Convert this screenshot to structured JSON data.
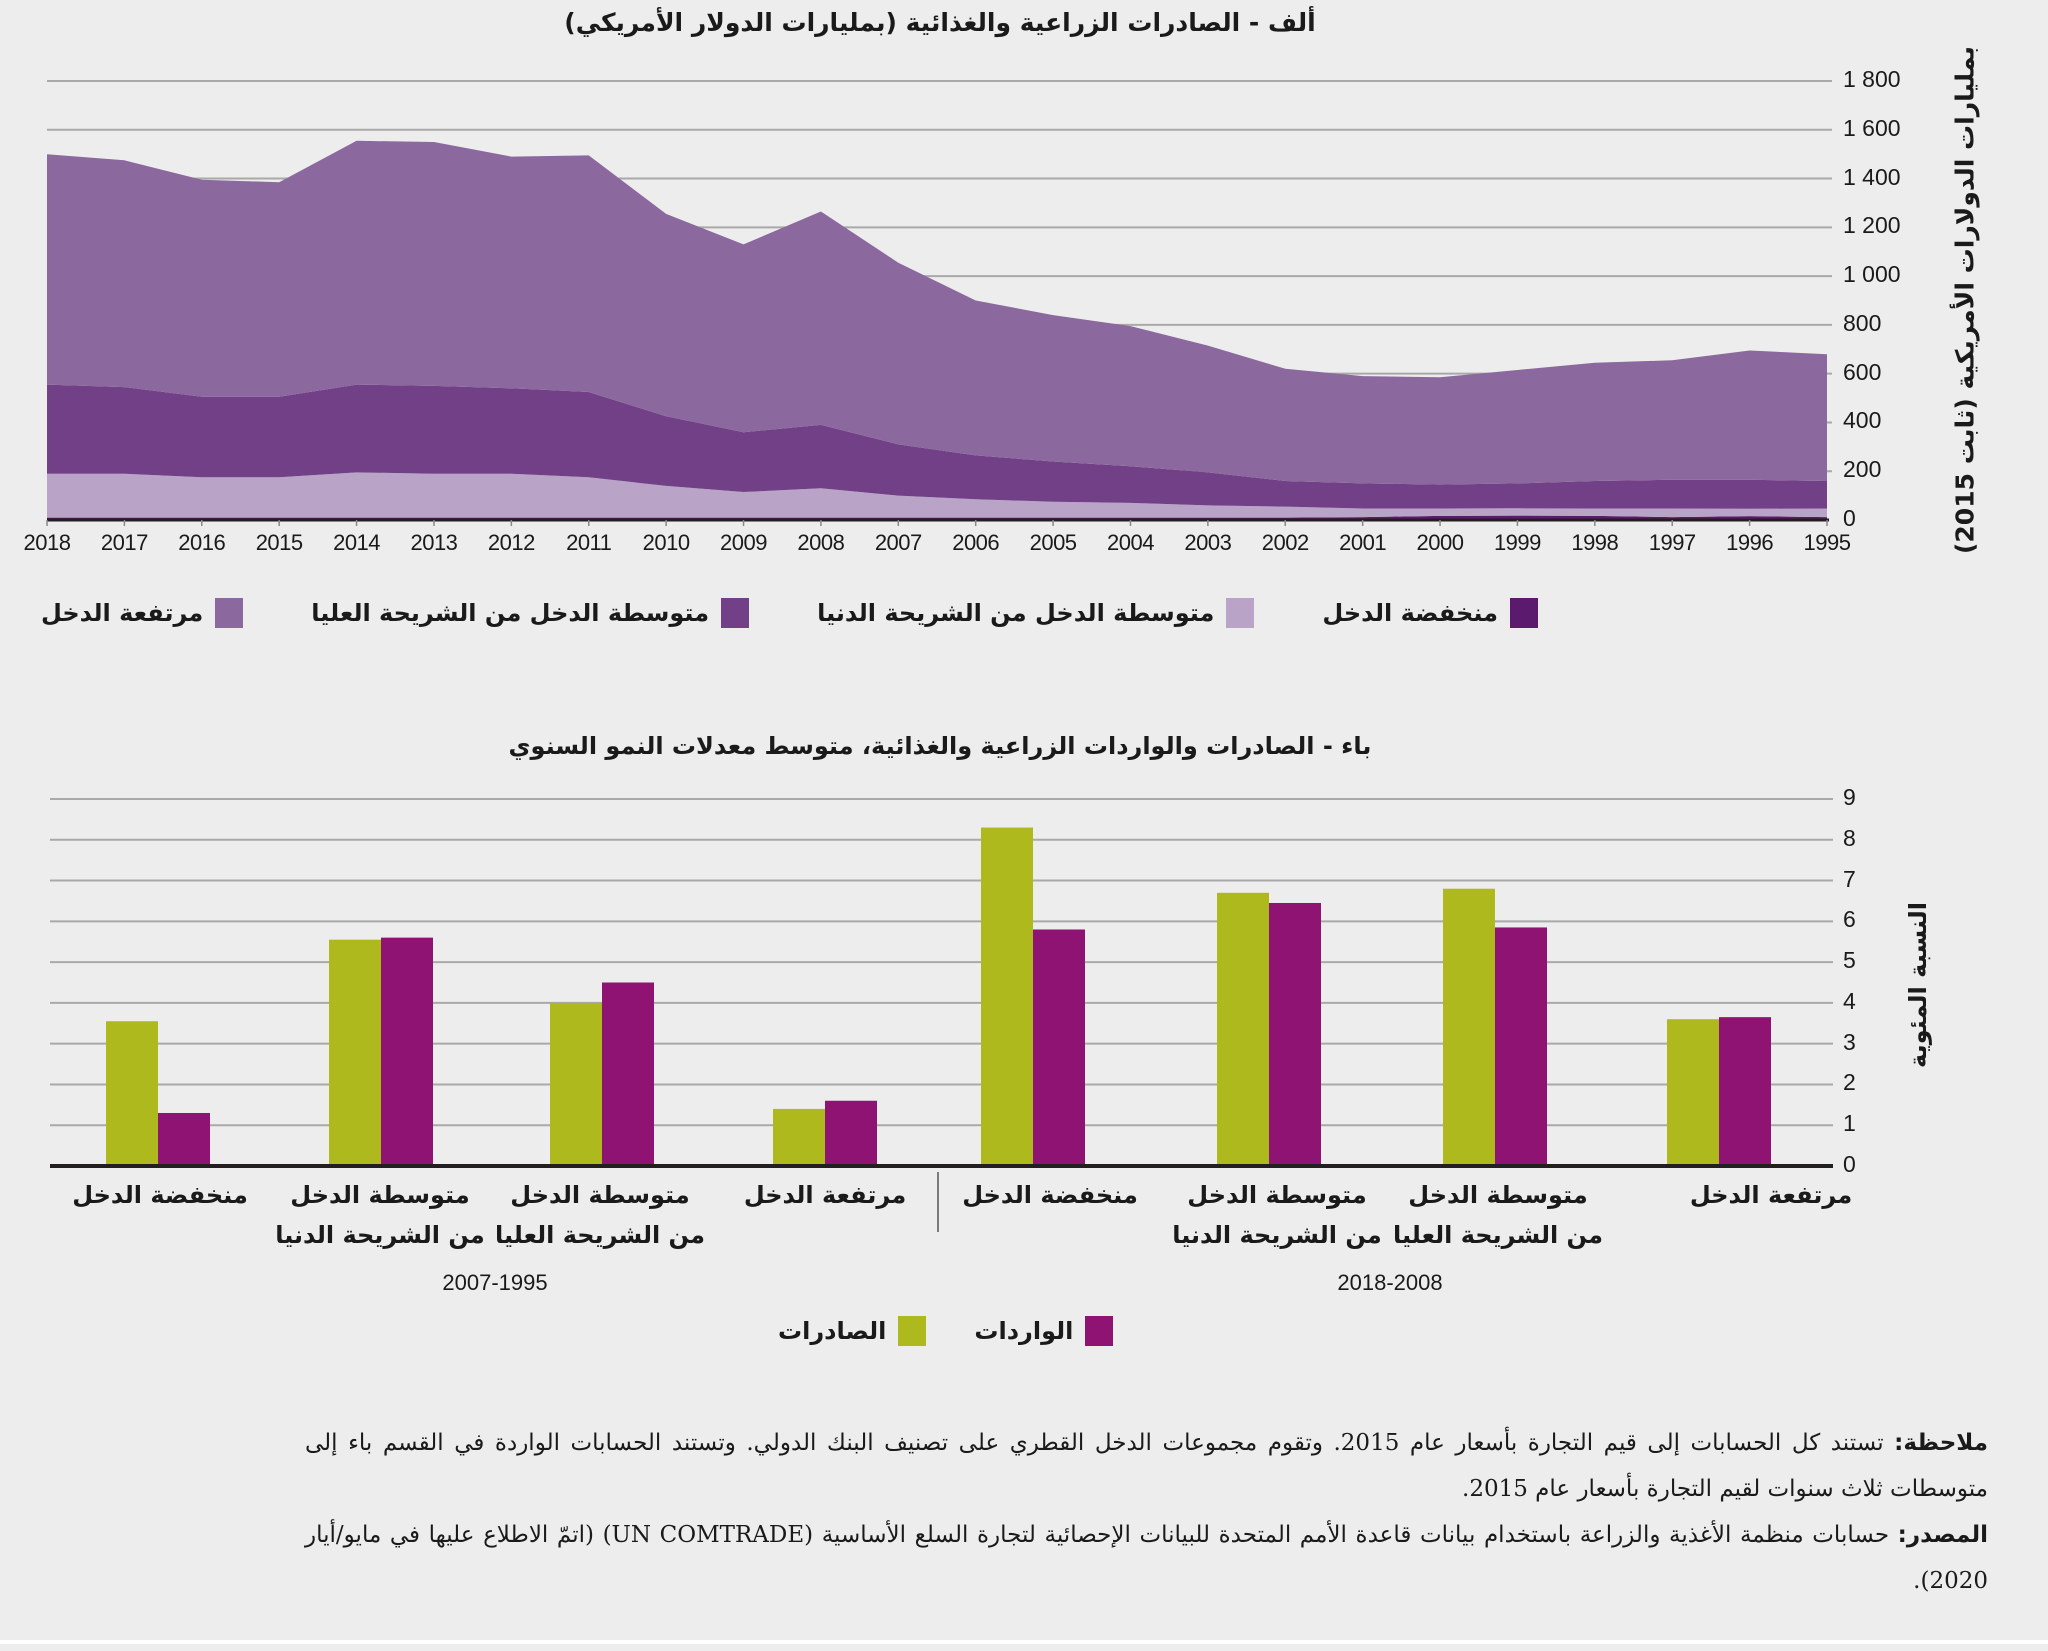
{
  "chart_data": [
    {
      "type": "area",
      "stacked": true,
      "title": "ألف - الصادرات الزراعية والغذائية (بمليارات الدولار الأمريكي)",
      "xlabel": "",
      "ylabel": "بمليارات الدولارات الأمريكية (ثابت 2015)",
      "ylim": [
        0,
        1800
      ],
      "yticks": [
        "0",
        "200",
        "400",
        "600",
        "800",
        "1 000",
        "1 200",
        "1 400",
        "1 600",
        "1 800"
      ],
      "ytick_values": [
        0,
        200,
        400,
        600,
        800,
        1000,
        1200,
        1400,
        1600,
        1800
      ],
      "x_direction": "right-to-left",
      "grid": true,
      "legend_position": "bottom",
      "x": [
        2018,
        2017,
        2016,
        2015,
        2014,
        2013,
        2012,
        2011,
        2010,
        2009,
        2008,
        2007,
        2006,
        2005,
        2004,
        2003,
        2002,
        2001,
        2000,
        1999,
        1998,
        1997,
        1996,
        1995
      ],
      "series": [
        {
          "name": "منخفضة الدخل",
          "color": "#5c1a6e",
          "values": [
            10,
            10,
            10,
            10,
            10,
            10,
            10,
            10,
            10,
            10,
            10,
            10,
            10,
            10,
            10,
            10,
            10,
            12,
            17,
            18,
            17,
            12,
            16,
            12
          ]
        },
        {
          "name": "متوسطة الدخل من الشريحة الدنيا",
          "color": "#b9a4c8",
          "values": [
            180,
            180,
            165,
            165,
            185,
            180,
            180,
            165,
            130,
            105,
            120,
            90,
            75,
            65,
            60,
            50,
            45,
            35,
            30,
            30,
            30,
            35,
            30,
            35
          ]
        },
        {
          "name": "متوسطة الدخل من الشريحة العليا",
          "color": "#724087",
          "values": [
            365,
            355,
            330,
            330,
            360,
            360,
            350,
            350,
            285,
            245,
            260,
            210,
            180,
            165,
            150,
            135,
            105,
            103,
            98,
            102,
            113,
            118,
            119,
            113
          ]
        },
        {
          "name": "مرتفعة الدخل",
          "color": "#8b689d",
          "values": [
            945,
            930,
            890,
            880,
            1000,
            1000,
            950,
            970,
            830,
            770,
            875,
            745,
            635,
            600,
            575,
            520,
            460,
            440,
            440,
            465,
            485,
            490,
            530,
            520
          ]
        }
      ],
      "totals": [
        1500,
        1475,
        1395,
        1385,
        1555,
        1550,
        1490,
        1495,
        1255,
        1130,
        1265,
        1055,
        900,
        840,
        795,
        715,
        620,
        590,
        585,
        615,
        645,
        655,
        695,
        680
      ]
    },
    {
      "type": "bar",
      "grouped": true,
      "title": "باء - الصادرات والواردات الزراعية والغذائية، متوسط معدلات النمو السنوي",
      "xlabel": "",
      "ylabel": "النسبة المئوية",
      "ylim": [
        0,
        9
      ],
      "yticks": [
        "0",
        "1",
        "2",
        "3",
        "4",
        "5",
        "6",
        "7",
        "8",
        "9"
      ],
      "ytick_values": [
        0,
        1,
        2,
        3,
        4,
        5,
        6,
        7,
        8,
        9
      ],
      "grid": true,
      "legend_position": "bottom",
      "periods": [
        {
          "label": "2018-2008",
          "categories": [
            {
              "line1": "مرتفعة الدخل",
              "line2": ""
            },
            {
              "line1": "متوسطة الدخل",
              "line2": "من الشريحة العليا"
            },
            {
              "line1": "متوسطة الدخل",
              "line2": "من الشريحة الدنيا"
            },
            {
              "line1": "منخفضة الدخل",
              "line2": ""
            }
          ]
        },
        {
          "label": "2007-1995",
          "categories": [
            {
              "line1": "مرتفعة الدخل",
              "line2": ""
            },
            {
              "line1": "متوسطة الدخل",
              "line2": "من الشريحة العليا"
            },
            {
              "line1": "متوسطة الدخل",
              "line2": "من الشريحة الدنيا"
            },
            {
              "line1": "منخفضة الدخل",
              "line2": ""
            }
          ]
        }
      ],
      "categories": [
        "2018-2008 مرتفعة الدخل",
        "2018-2008 متوسطة الدخل من الشريحة العليا",
        "2018-2008 متوسطة الدخل من الشريحة الدنيا",
        "2018-2008 منخفضة الدخل",
        "2007-1995 مرتفعة الدخل",
        "2007-1995 متوسطة الدخل من الشريحة العليا",
        "2007-1995 متوسطة الدخل من الشريحة الدنيا",
        "2007-1995 منخفضة الدخل"
      ],
      "series": [
        {
          "name": "الصادرات",
          "color": "#adb91d",
          "values": [
            3.6,
            6.8,
            6.7,
            8.3,
            1.4,
            4.0,
            5.55,
            3.55
          ]
        },
        {
          "name": "الواردات",
          "color": "#8e1372",
          "values": [
            3.65,
            5.85,
            6.45,
            5.8,
            1.6,
            4.5,
            5.6,
            1.3
          ]
        }
      ]
    }
  ],
  "notes": {
    "note_label": "ملاحظة:",
    "note_text": " تستند كل الحسابات إلى قيم التجارة بأسعار عام 2015. وتقوم مجموعات الدخل القطري على تصنيف البنك الدولي. وتستند الحسابات الواردة في القسم باء إلى متوسطات ثلاث سنوات لقيم التجارة بأسعار عام 2015.",
    "source_label": "المصدر:",
    "source_text": " حسابات منظمة الأغذية والزراعة باستخدام بيانات قاعدة الأمم المتحدة للبيانات الإحصائية لتجارة السلع الأساسية (UN COMTRADE) (اتمّ الاطلاع عليها في مايو/أيار 2020)."
  }
}
